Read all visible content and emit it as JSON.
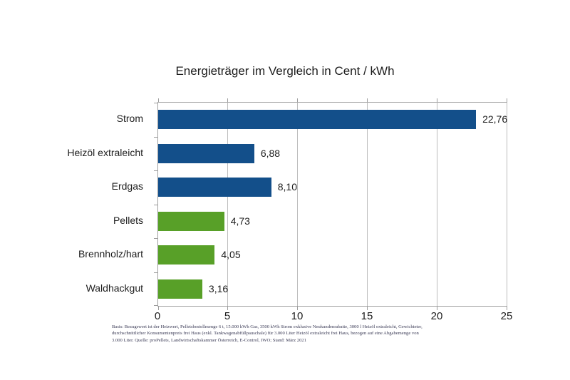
{
  "title": "Energieträger im Vergleich in Cent / kWh",
  "chart_data": {
    "type": "bar",
    "orientation": "horizontal",
    "title": "Energieträger im Vergleich in Cent / kWh",
    "categories": [
      "Strom",
      "Heizöl extraleicht",
      "Erdgas",
      "Pellets",
      "Brennholz/hart",
      "Waldhackgut"
    ],
    "values": [
      22.76,
      6.88,
      8.1,
      4.73,
      4.05,
      3.16
    ],
    "value_labels": [
      "22,76",
      "6,88",
      "8,10",
      "4,73",
      "4,05",
      "3,16"
    ],
    "bar_colors": [
      "#134F8A",
      "#134F8A",
      "#134F8A",
      "#58A028",
      "#58A028",
      "#58A028"
    ],
    "xlabel": "",
    "ylabel": "",
    "xlim": [
      0,
      25
    ],
    "xticks": [
      0,
      5,
      10,
      15,
      20,
      25
    ],
    "grid": true,
    "legend": false
  },
  "footnote": {
    "lines": [
      "Basis: Bezugswert ist der Heizwert, Pelletsbestellmenge 6 t, 15.000 kWh Gas, 3500 kWh Strom exklusive Neukundenrabatte, 3000 l Heizöl extraleicht, Gewichteter,",
      "durchschnittlicher Konsumentenpreis frei Haus (exkl. Tankwagenabfüllpauschale) für 3.000 Liter Heizöl extraleicht frei Haus, bezogen auf eine Abgabemenge von",
      "3.000 Liter. Quelle: proPellets, Landwirtschaftskammer Österreich, E-Control, IWO; Stand: März 2021"
    ]
  },
  "colors": {
    "bar_blue": "#134F8A",
    "bar_green": "#58A028",
    "gridline": "#bcbcbc",
    "axis": "#9d9d9d",
    "text": "#1d1d1d",
    "footnote_text": "#3a3a55",
    "background": "#ffffff"
  }
}
